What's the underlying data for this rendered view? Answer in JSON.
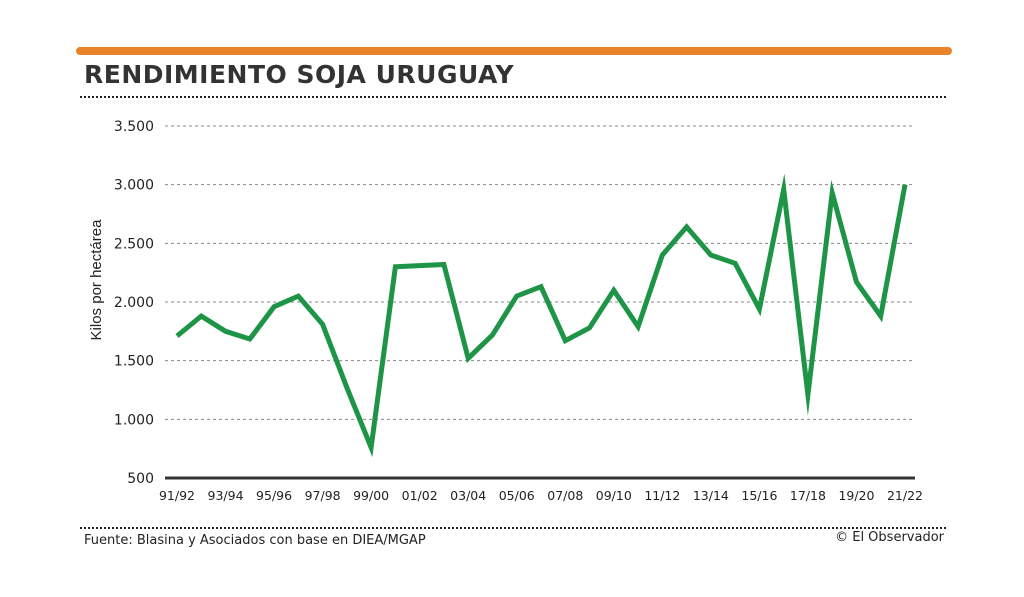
{
  "header": {
    "title": "RENDIMIENTO SOJA URUGUAY"
  },
  "footer": {
    "source": "Fuente: Blasina y Asociados con base en DIEA/MGAP",
    "credit": "© El Observador"
  },
  "colors": {
    "accent": "#E8832A",
    "line": "#1E9447",
    "grid": "#888888",
    "baseline": "#333333"
  },
  "chart_data": {
    "type": "line",
    "title": "RENDIMIENTO SOJA URUGUAY",
    "xlabel": "",
    "ylabel": "Kilos por hectárea",
    "ylim": [
      500,
      3500
    ],
    "yticks": [
      500,
      1000,
      1500,
      2000,
      2500,
      3000,
      3500
    ],
    "ytick_labels": [
      "500",
      "1.000",
      "1.500",
      "2.000",
      "2.500",
      "3.000",
      "3.500"
    ],
    "x_tick_labels": [
      "91/92",
      "93/94",
      "95/96",
      "97/98",
      "99/00",
      "01/02",
      "03/04",
      "05/06",
      "07/08",
      "09/10",
      "11/12",
      "13/14",
      "15/16",
      "17/18",
      "19/20",
      "21/22"
    ],
    "grid": true,
    "legend": "none",
    "categories": [
      "91/92",
      "92/93",
      "93/94",
      "94/95",
      "95/96",
      "96/97",
      "97/98",
      "98/99",
      "99/00",
      "00/01",
      "01/02",
      "02/03",
      "03/04",
      "04/05",
      "05/06",
      "06/07",
      "07/08",
      "08/09",
      "09/10",
      "10/11",
      "11/12",
      "12/13",
      "13/14",
      "14/15",
      "15/16",
      "16/17",
      "17/18",
      "18/19",
      "19/20",
      "20/21",
      "21/22"
    ],
    "series": [
      {
        "values": [
          1710,
          1880,
          1750,
          1685,
          1960,
          2050,
          1810,
          1270,
          760,
          2300,
          2310,
          2320,
          1520,
          1720,
          2050,
          2130,
          1670,
          1780,
          2100,
          1790,
          2400,
          2640,
          2400,
          2330,
          1940,
          2960,
          1210,
          2930,
          2170,
          1880,
          3000
        ]
      }
    ]
  }
}
